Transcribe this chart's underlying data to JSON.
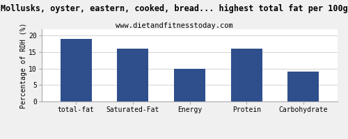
{
  "title": "Mollusks, oyster, eastern, cooked, bread... highest total fat per 100g",
  "subtitle": "www.dietandfitnesstoday.com",
  "ylabel": "Percentage of RDH (%)",
  "categories": [
    "total-fat",
    "Saturated-Fat",
    "Energy",
    "Protein",
    "Carbohydrate"
  ],
  "values": [
    19.0,
    16.0,
    10.0,
    16.0,
    9.0
  ],
  "bar_color": "#2e4f8c",
  "ylim": [
    0,
    22
  ],
  "yticks": [
    0,
    5,
    10,
    15,
    20
  ],
  "background_color": "#f0f0f0",
  "plot_bg_color": "#ffffff",
  "title_fontsize": 8.5,
  "subtitle_fontsize": 7.5,
  "ylabel_fontsize": 7,
  "tick_fontsize": 7,
  "bar_width": 0.55
}
